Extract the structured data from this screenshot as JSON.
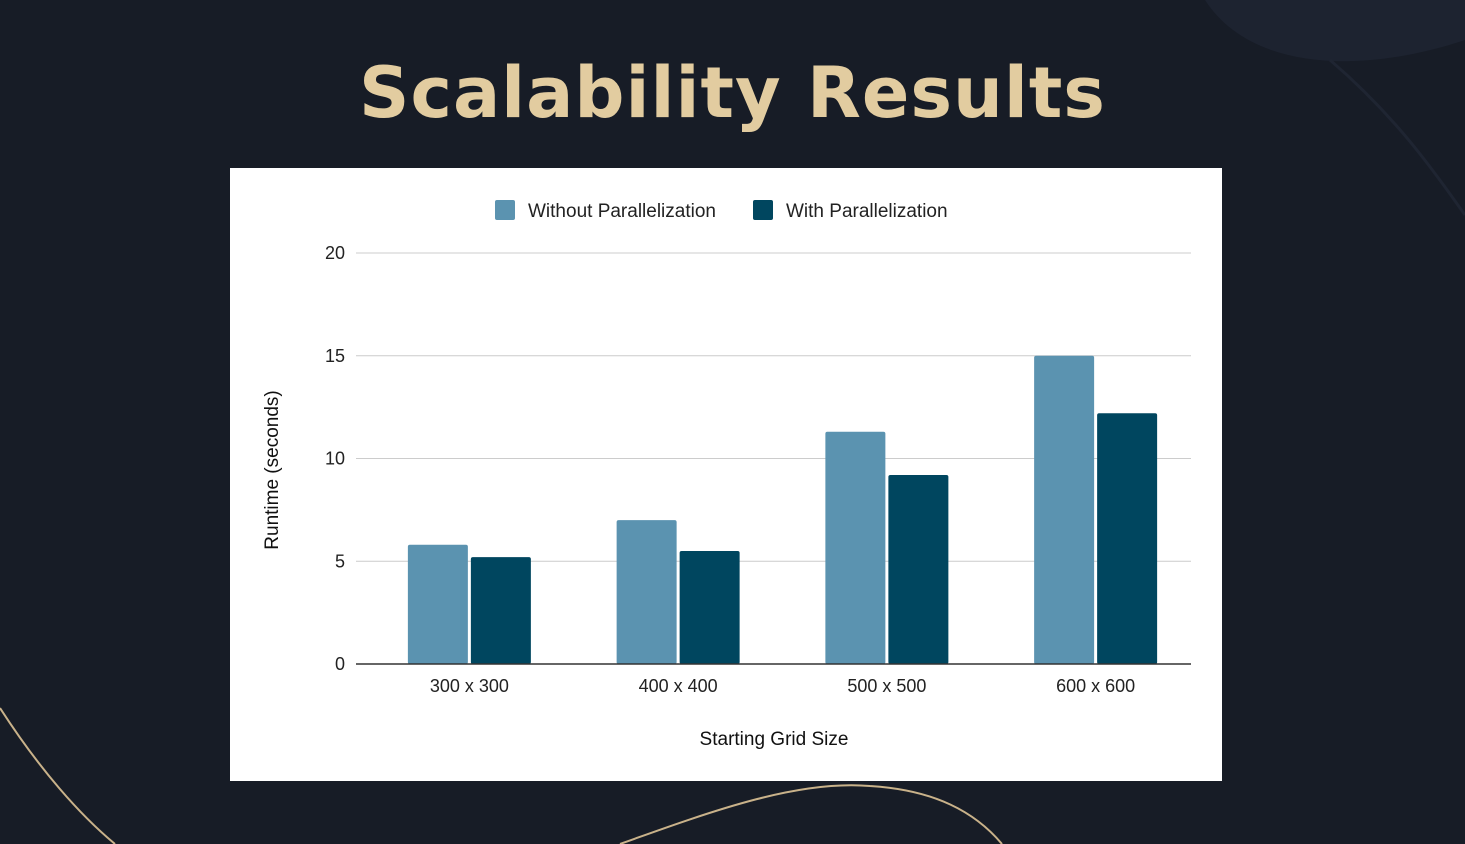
{
  "slide": {
    "title": "Scalability Results"
  },
  "chart_data": {
    "type": "bar",
    "categories": [
      "300 x 300",
      "400 x 400",
      "500 x 500",
      "600 x 600"
    ],
    "series": [
      {
        "name": "Without Parallelization",
        "values": [
          5.8,
          7.0,
          11.3,
          15.0
        ],
        "color": "#5b93b0"
      },
      {
        "name": "With Parallelization",
        "values": [
          5.2,
          5.5,
          9.2,
          12.2
        ],
        "color": "#00465f"
      }
    ],
    "xlabel": "Starting Grid Size",
    "ylabel": "Runtime (seconds)",
    "ylim": [
      0,
      20
    ],
    "yticks": [
      0,
      5,
      10,
      15,
      20
    ],
    "grid": true,
    "legend_position": "top"
  }
}
